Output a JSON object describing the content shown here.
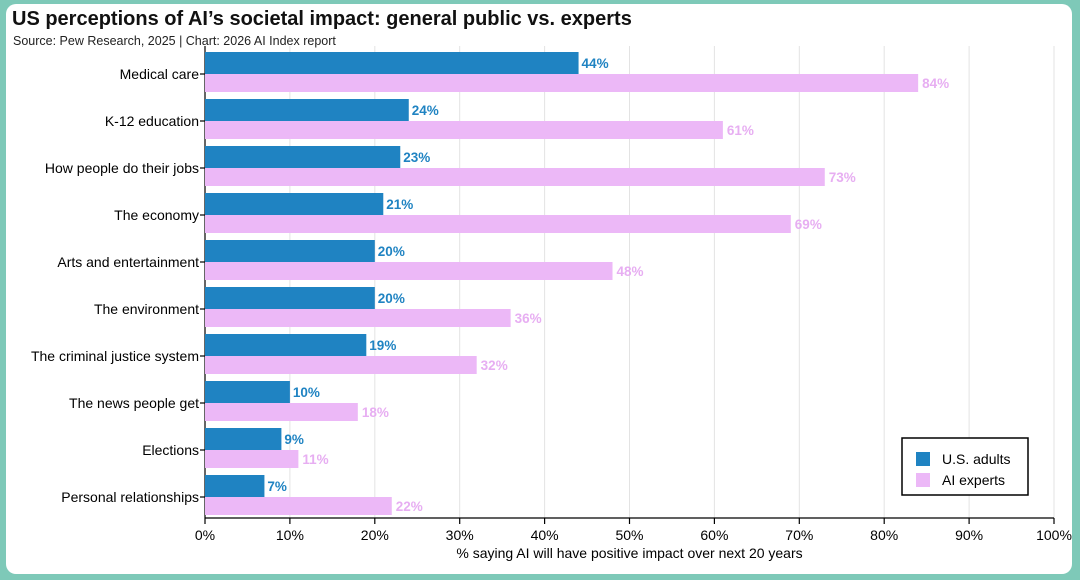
{
  "title": "US perceptions of AI’s societal impact: general public vs. experts",
  "subtitle": "Source: Pew Research, 2025 | Chart: 2026 AI Index report",
  "colors": {
    "us_adults": "#1f83c2",
    "ai_experts": "#ecb8f7",
    "us_label": "#1f83c2",
    "ai_label": "#e7aef2",
    "grid": "#e3e3e3"
  },
  "chart_data": {
    "type": "bar",
    "orientation": "horizontal",
    "categories": [
      "Medical care",
      "K-12 education",
      "How people do their jobs",
      "The economy",
      "Arts and entertainment",
      "The environment",
      "The criminal justice system",
      "The news people get",
      "Elections",
      "Personal relationships"
    ],
    "series": [
      {
        "name": "U.S. adults",
        "values": [
          44,
          24,
          23,
          21,
          20,
          20,
          19,
          10,
          9,
          7
        ]
      },
      {
        "name": "AI experts",
        "values": [
          84,
          61,
          73,
          69,
          48,
          36,
          32,
          18,
          11,
          22
        ]
      }
    ],
    "xlim": [
      0,
      100
    ],
    "xticks": [
      "0%",
      "10%",
      "20%",
      "30%",
      "40%",
      "50%",
      "60%",
      "70%",
      "80%",
      "90%",
      "100%"
    ],
    "xlabel": "% saying AI will have positive impact over next 20 years",
    "ylabel": "",
    "value_suffix": "%",
    "grid": true,
    "legend_position": "bottom-right"
  }
}
